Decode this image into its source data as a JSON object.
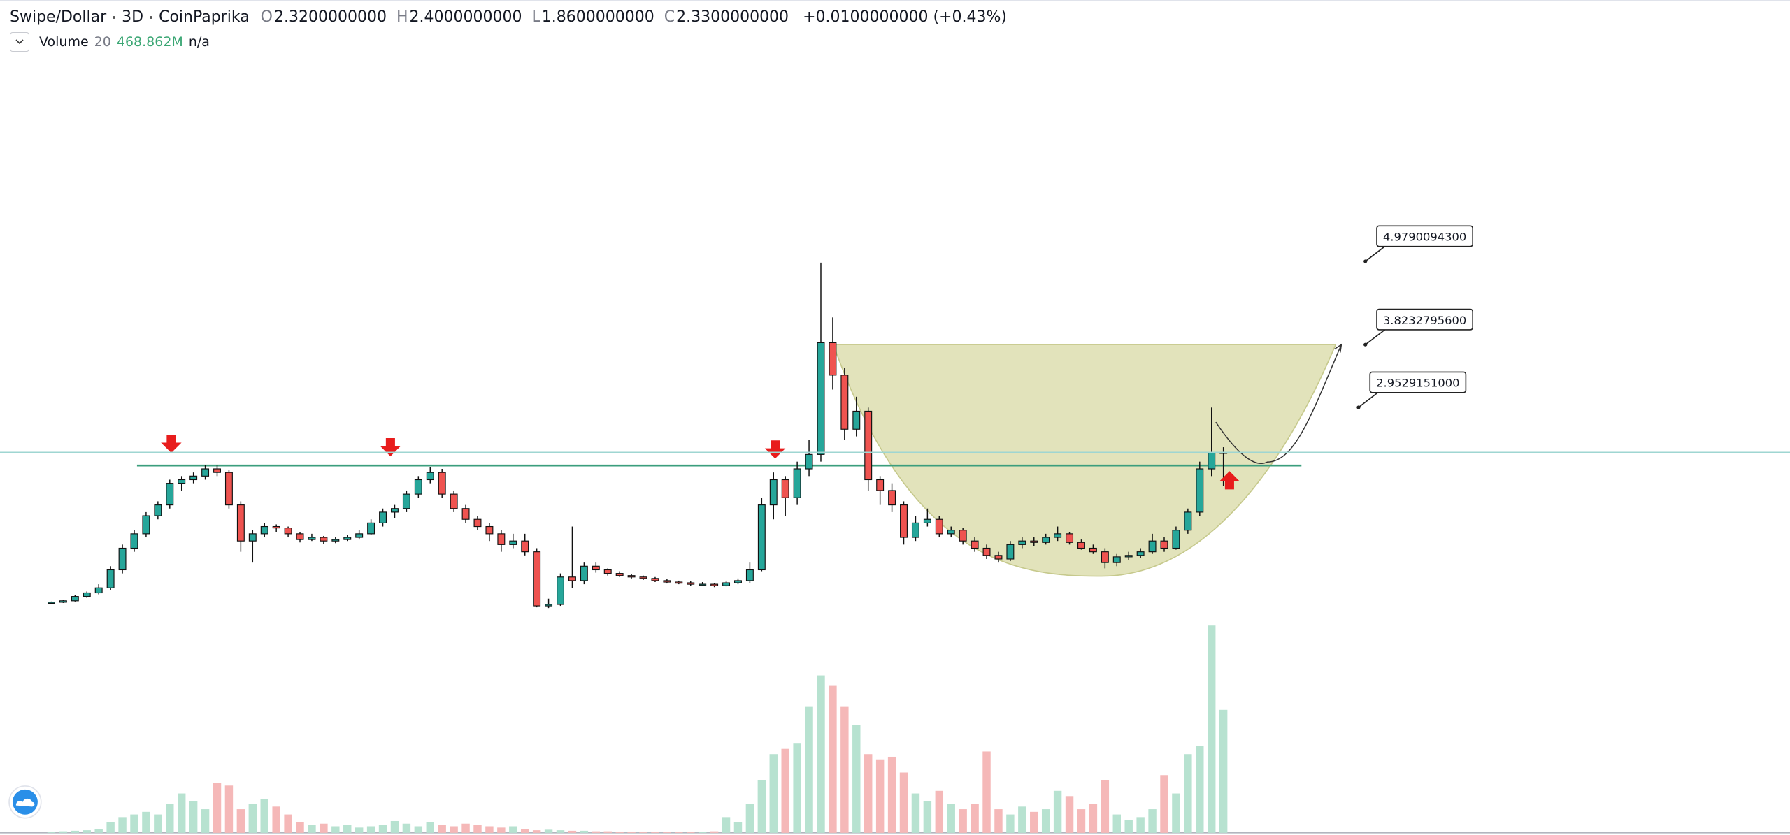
{
  "header": {
    "symbol": "Swipe/Dollar",
    "interval": "3D",
    "source": "CoinPaprika",
    "ohlc": [
      {
        "key": "O",
        "value": "2.3200000000"
      },
      {
        "key": "H",
        "value": "2.4000000000"
      },
      {
        "key": "L",
        "value": "1.8600000000"
      },
      {
        "key": "C",
        "value": "2.3300000000"
      }
    ],
    "change": "+0.0100000000 (+0.43%)"
  },
  "volume_legend": {
    "name": "Volume",
    "length": 20,
    "value": "468.862M",
    "extra": "n/a"
  },
  "chart_data": {
    "type": "candlestick",
    "up_color": "#26a69a",
    "down_color": "#ef5350",
    "ylim": [
      -2.948,
      8.603
    ],
    "ohlc": [
      [
        0.24,
        0.26,
        0.23,
        0.25
      ],
      [
        0.25,
        0.28,
        0.24,
        0.27
      ],
      [
        0.27,
        0.35,
        0.26,
        0.33
      ],
      [
        0.33,
        0.4,
        0.31,
        0.38
      ],
      [
        0.38,
        0.5,
        0.36,
        0.45
      ],
      [
        0.45,
        0.75,
        0.42,
        0.7
      ],
      [
        0.7,
        1.05,
        0.65,
        1.0
      ],
      [
        1.0,
        1.25,
        0.95,
        1.2
      ],
      [
        1.2,
        1.5,
        1.15,
        1.45
      ],
      [
        1.45,
        1.65,
        1.4,
        1.6
      ],
      [
        1.6,
        1.95,
        1.55,
        1.9
      ],
      [
        1.9,
        2.0,
        1.8,
        1.95
      ],
      [
        1.95,
        2.05,
        1.9,
        2.0
      ],
      [
        2.0,
        2.15,
        1.95,
        2.1
      ],
      [
        2.1,
        2.15,
        2.0,
        2.05
      ],
      [
        2.05,
        2.08,
        1.55,
        1.6
      ],
      [
        1.6,
        1.65,
        0.95,
        1.1
      ],
      [
        1.1,
        1.25,
        0.8,
        1.2
      ],
      [
        1.2,
        1.35,
        1.15,
        1.3
      ],
      [
        1.3,
        1.33,
        1.22,
        1.28
      ],
      [
        1.28,
        1.3,
        1.15,
        1.2
      ],
      [
        1.2,
        1.22,
        1.08,
        1.12
      ],
      [
        1.12,
        1.2,
        1.1,
        1.15
      ],
      [
        1.15,
        1.17,
        1.06,
        1.1
      ],
      [
        1.1,
        1.15,
        1.07,
        1.12
      ],
      [
        1.12,
        1.18,
        1.1,
        1.15
      ],
      [
        1.15,
        1.25,
        1.12,
        1.2
      ],
      [
        1.2,
        1.4,
        1.18,
        1.35
      ],
      [
        1.35,
        1.55,
        1.3,
        1.5
      ],
      [
        1.5,
        1.6,
        1.42,
        1.55
      ],
      [
        1.55,
        1.8,
        1.5,
        1.75
      ],
      [
        1.75,
        2.0,
        1.7,
        1.95
      ],
      [
        1.95,
        2.12,
        1.9,
        2.05
      ],
      [
        2.05,
        2.1,
        1.7,
        1.75
      ],
      [
        1.75,
        1.8,
        1.5,
        1.55
      ],
      [
        1.55,
        1.6,
        1.35,
        1.4
      ],
      [
        1.4,
        1.45,
        1.25,
        1.3
      ],
      [
        1.3,
        1.35,
        1.1,
        1.2
      ],
      [
        1.2,
        1.25,
        0.95,
        1.05
      ],
      [
        1.05,
        1.2,
        1.0,
        1.1
      ],
      [
        1.1,
        1.2,
        0.9,
        0.95
      ],
      [
        0.95,
        1.0,
        0.18,
        0.2
      ],
      [
        0.2,
        0.3,
        0.17,
        0.22
      ],
      [
        0.22,
        0.65,
        0.2,
        0.6
      ],
      [
        0.6,
        1.3,
        0.45,
        0.55
      ],
      [
        0.55,
        0.8,
        0.5,
        0.75
      ],
      [
        0.75,
        0.8,
        0.66,
        0.7
      ],
      [
        0.7,
        0.72,
        0.62,
        0.65
      ],
      [
        0.65,
        0.68,
        0.6,
        0.62
      ],
      [
        0.62,
        0.64,
        0.58,
        0.6
      ],
      [
        0.6,
        0.62,
        0.56,
        0.58
      ],
      [
        0.58,
        0.6,
        0.53,
        0.55
      ],
      [
        0.55,
        0.57,
        0.51,
        0.53
      ],
      [
        0.53,
        0.55,
        0.5,
        0.52
      ],
      [
        0.52,
        0.54,
        0.48,
        0.5
      ],
      [
        0.5,
        0.53,
        0.48,
        0.5
      ],
      [
        0.5,
        0.52,
        0.46,
        0.48
      ],
      [
        0.48,
        0.55,
        0.47,
        0.52
      ],
      [
        0.52,
        0.58,
        0.5,
        0.55
      ],
      [
        0.55,
        0.8,
        0.52,
        0.7
      ],
      [
        0.7,
        1.7,
        0.68,
        1.6
      ],
      [
        1.6,
        2.05,
        1.4,
        1.95
      ],
      [
        1.95,
        2.0,
        1.45,
        1.7
      ],
      [
        1.7,
        2.2,
        1.6,
        2.1
      ],
      [
        2.1,
        2.5,
        2.0,
        2.3
      ],
      [
        2.3,
        4.96,
        2.2,
        3.85
      ],
      [
        3.85,
        4.2,
        3.2,
        3.4
      ],
      [
        3.4,
        3.5,
        2.5,
        2.65
      ],
      [
        2.65,
        3.1,
        2.55,
        2.9
      ],
      [
        2.9,
        2.95,
        1.8,
        1.95
      ],
      [
        1.95,
        2.0,
        1.6,
        1.8
      ],
      [
        1.8,
        1.9,
        1.5,
        1.6
      ],
      [
        1.6,
        1.65,
        1.05,
        1.15
      ],
      [
        1.15,
        1.45,
        1.1,
        1.35
      ],
      [
        1.35,
        1.55,
        1.3,
        1.4
      ],
      [
        1.4,
        1.45,
        1.15,
        1.2
      ],
      [
        1.2,
        1.3,
        1.15,
        1.25
      ],
      [
        1.25,
        1.28,
        1.05,
        1.1
      ],
      [
        1.1,
        1.15,
        0.95,
        1.0
      ],
      [
        1.0,
        1.05,
        0.85,
        0.9
      ],
      [
        0.9,
        0.95,
        0.8,
        0.85
      ],
      [
        0.85,
        1.1,
        0.82,
        1.05
      ],
      [
        1.05,
        1.15,
        1.0,
        1.1
      ],
      [
        1.1,
        1.15,
        1.03,
        1.08
      ],
      [
        1.08,
        1.2,
        1.05,
        1.15
      ],
      [
        1.15,
        1.3,
        1.1,
        1.2
      ],
      [
        1.2,
        1.22,
        1.05,
        1.08
      ],
      [
        1.08,
        1.12,
        0.98,
        1.0
      ],
      [
        1.0,
        1.05,
        0.92,
        0.95
      ],
      [
        0.95,
        1.0,
        0.72,
        0.8
      ],
      [
        0.8,
        0.92,
        0.75,
        0.88
      ],
      [
        0.88,
        0.95,
        0.84,
        0.9
      ],
      [
        0.9,
        1.0,
        0.86,
        0.95
      ],
      [
        0.95,
        1.2,
        0.92,
        1.1
      ],
      [
        1.1,
        1.15,
        0.95,
        1.0
      ],
      [
        1.0,
        1.3,
        0.98,
        1.25
      ],
      [
        1.25,
        1.55,
        1.2,
        1.5
      ],
      [
        1.5,
        2.2,
        1.45,
        2.1
      ],
      [
        2.1,
        2.95,
        2.0,
        2.32
      ],
      [
        2.32,
        2.4,
        1.86,
        2.33
      ]
    ],
    "volume": {
      "ylim": [
        0,
        800
      ],
      "up_color": "#b7e2d0",
      "down_color": "#f5b8b8",
      "values": [
        5,
        6,
        8,
        10,
        15,
        40,
        60,
        70,
        80,
        70,
        110,
        150,
        120,
        90,
        190,
        180,
        90,
        110,
        130,
        100,
        70,
        40,
        30,
        35,
        25,
        30,
        20,
        25,
        30,
        45,
        35,
        25,
        40,
        30,
        25,
        35,
        30,
        25,
        20,
        25,
        15,
        10,
        12,
        10,
        8,
        8,
        6,
        6,
        5,
        5,
        5,
        4,
        4,
        5,
        4,
        5,
        6,
        60,
        40,
        110,
        200,
        300,
        320,
        340,
        480,
        600,
        560,
        480,
        410,
        300,
        280,
        290,
        230,
        150,
        120,
        160,
        110,
        90,
        110,
        310,
        90,
        70,
        100,
        80,
        90,
        160,
        140,
        90,
        110,
        200,
        70,
        50,
        60,
        90,
        220,
        150,
        300,
        330,
        790,
        468.862
      ]
    },
    "price_labels": [
      {
        "value": 4.97900943,
        "label": "4.9790094300"
      },
      {
        "value": 3.82327956,
        "label": "3.8232795600"
      },
      {
        "value": 2.9529151,
        "label": "2.9529151000"
      }
    ]
  }
}
